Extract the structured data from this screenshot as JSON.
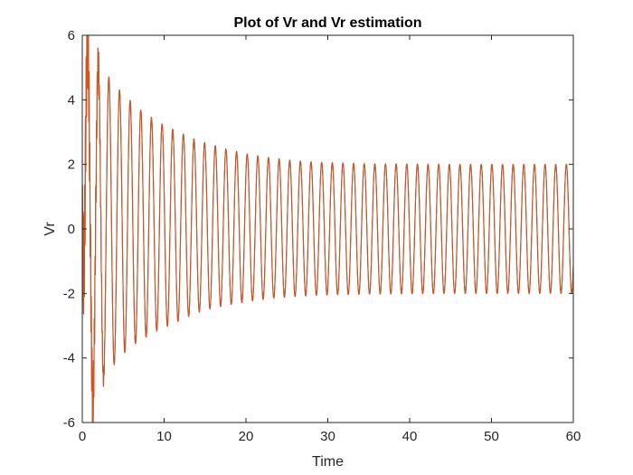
{
  "chart_data": {
    "type": "line",
    "title": "Plot of Vr and Vr estimation",
    "xlabel": "Time",
    "ylabel": "Vr",
    "xlim": [
      0,
      60
    ],
    "ylim": [
      -6,
      6
    ],
    "xticks": [
      0,
      10,
      20,
      30,
      40,
      50,
      60
    ],
    "yticks": [
      -6,
      -4,
      -2,
      0,
      2,
      4,
      6
    ],
    "grid": false,
    "series": [
      {
        "color": "#0072BD",
        "steady_amplitude": 2,
        "period": 1.3,
        "x": [
          0,
          0.4,
          1.0,
          1.65,
          2.3,
          2.95,
          3.6,
          4.9,
          6.2,
          7.5,
          8.8,
          10.1,
          11.4,
          12.7,
          14.0,
          15.3,
          16.6,
          17.9,
          19.2,
          20.5,
          23.1,
          25.7,
          28.3,
          30.9,
          35.0,
          40.0,
          45.0,
          50.0,
          55.0,
          60.0
        ],
        "y_upper": [
          0,
          5.8,
          5.6,
          5.2,
          5.0,
          4.8,
          4.6,
          4.2,
          3.9,
          3.6,
          3.4,
          3.2,
          3.05,
          2.9,
          2.75,
          2.65,
          2.55,
          2.45,
          2.38,
          2.3,
          2.2,
          2.12,
          2.07,
          2.05,
          2.02,
          2.01,
          2.0,
          2.0,
          2.0,
          2.0
        ],
        "y_lower": [
          0,
          -4.3,
          -5.55,
          -5.0,
          -4.8,
          -4.5,
          -4.3,
          -3.9,
          -3.6,
          -3.4,
          -3.2,
          -3.05,
          -2.9,
          -2.75,
          -2.6,
          -2.5,
          -2.42,
          -2.35,
          -2.3,
          -2.24,
          -2.15,
          -2.1,
          -2.06,
          -2.04,
          -2.02,
          -2.01,
          -2.0,
          -2.0,
          -2.0,
          -2.0
        ]
      },
      {
        "color": "#D95319",
        "steady_amplitude": 2,
        "period": 1.3,
        "x": [
          0,
          0.4,
          1.0,
          1.65,
          2.3,
          2.95,
          3.6,
          4.9,
          6.2,
          7.5,
          8.8,
          10.1,
          11.4,
          12.7,
          14.0,
          15.3,
          16.6,
          17.9,
          19.2,
          20.5,
          23.1,
          25.7,
          28.3,
          30.9,
          35.0,
          40.0,
          45.0,
          50.0,
          55.0,
          60.0
        ],
        "y_upper": [
          0,
          5.85,
          5.6,
          5.2,
          5.0,
          4.8,
          4.6,
          4.2,
          3.9,
          3.6,
          3.4,
          3.2,
          3.05,
          2.9,
          2.75,
          2.65,
          2.55,
          2.45,
          2.38,
          2.3,
          2.2,
          2.12,
          2.07,
          2.05,
          2.02,
          2.01,
          2.0,
          2.0,
          2.0,
          2.0
        ],
        "y_lower": [
          0,
          -4.3,
          -5.55,
          -5.0,
          -4.8,
          -4.5,
          -4.3,
          -3.9,
          -3.6,
          -3.4,
          -3.2,
          -3.05,
          -2.9,
          -2.75,
          -2.6,
          -2.5,
          -2.42,
          -2.35,
          -2.3,
          -2.24,
          -2.15,
          -2.1,
          -2.06,
          -2.04,
          -2.02,
          -2.01,
          -2.0,
          -2.0,
          -2.0,
          -2.0
        ]
      }
    ]
  }
}
